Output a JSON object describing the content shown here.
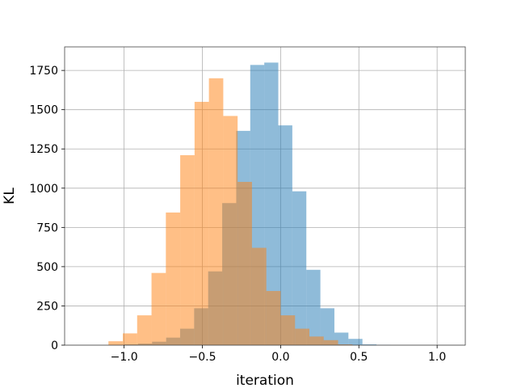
{
  "chart_data": {
    "type": "bar",
    "subtype": "overlapping-histogram",
    "title": "",
    "xlabel": "iteration",
    "ylabel": "KL",
    "xlim": [
      -1.38,
      1.18
    ],
    "ylim": [
      0,
      1900
    ],
    "xticks": [
      -1.0,
      -0.5,
      0.0,
      0.5,
      1.0
    ],
    "xtick_labels": [
      "−1.0",
      "−0.5",
      "0.0",
      "0.5",
      "1.0"
    ],
    "yticks": [
      0,
      250,
      500,
      750,
      1000,
      1250,
      1500,
      1750
    ],
    "ytick_labels": [
      "0",
      "250",
      "500",
      "750",
      "1000",
      "1250",
      "1500",
      "1750"
    ],
    "grid": true,
    "legend": "none",
    "series": [
      {
        "color": "#1f77b4",
        "alpha": 0.5,
        "bin_start": -1.09,
        "bin_width": 0.0896,
        "counts": [
          2,
          5,
          10,
          22,
          48,
          105,
          235,
          470,
          905,
          1365,
          1785,
          1800,
          1400,
          980,
          480,
          235,
          80,
          40,
          5,
          2
        ]
      },
      {
        "color": "#ff7f0e",
        "alpha": 0.5,
        "bin_start": -1.1,
        "bin_width": 0.0917,
        "counts": [
          25,
          75,
          190,
          460,
          845,
          1210,
          1550,
          1700,
          1460,
          1040,
          620,
          345,
          190,
          105,
          55,
          32,
          5
        ]
      }
    ]
  }
}
